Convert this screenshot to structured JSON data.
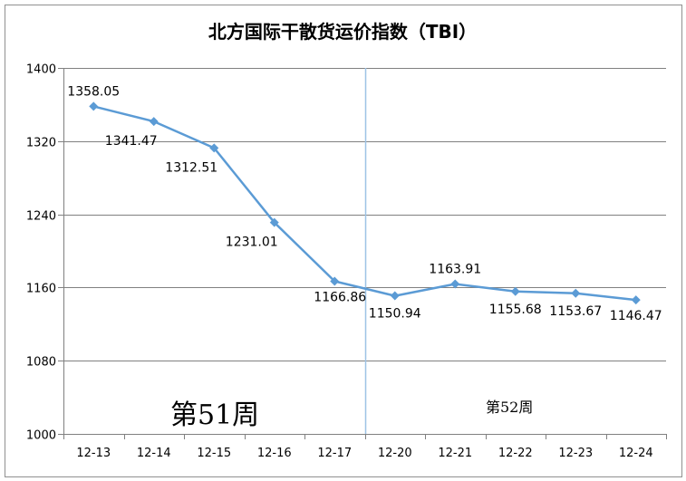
{
  "chart_data": {
    "type": "line",
    "title": "北方国际干散货运价指数（TBI）",
    "categories": [
      "12-13",
      "12-14",
      "12-15",
      "12-16",
      "12-17",
      "12-20",
      "12-21",
      "12-22",
      "12-23",
      "12-24"
    ],
    "series": [
      {
        "values": [
          1358.05,
          1341.47,
          1312.51,
          1231.01,
          1166.86,
          1150.94,
          1163.91,
          1155.68,
          1153.67,
          1146.47
        ],
        "labels": [
          "1358.05",
          "1341.47",
          "1312.51",
          "1231.01",
          "1166.86",
          "1150.94",
          "1163.91",
          "1155.68",
          "1153.67",
          "1146.47"
        ],
        "color": "#5b9bd5"
      }
    ],
    "ylim": [
      1000,
      1400
    ],
    "yticks": [
      1000,
      1080,
      1160,
      1240,
      1320,
      1400
    ],
    "ytick_labels": [
      "1000",
      "1080",
      "1160",
      "1240",
      "1320",
      "1400"
    ],
    "grid": true,
    "legend": "none",
    "week_divider_between": [
      "12-17",
      "12-20"
    ],
    "annotations": [
      {
        "text": "第51周"
      },
      {
        "text": "第52周"
      }
    ],
    "colors": {
      "line": "#5b9bd5",
      "grid": "#808080",
      "divider": "#9dc3e6",
      "border": "#909090"
    }
  }
}
